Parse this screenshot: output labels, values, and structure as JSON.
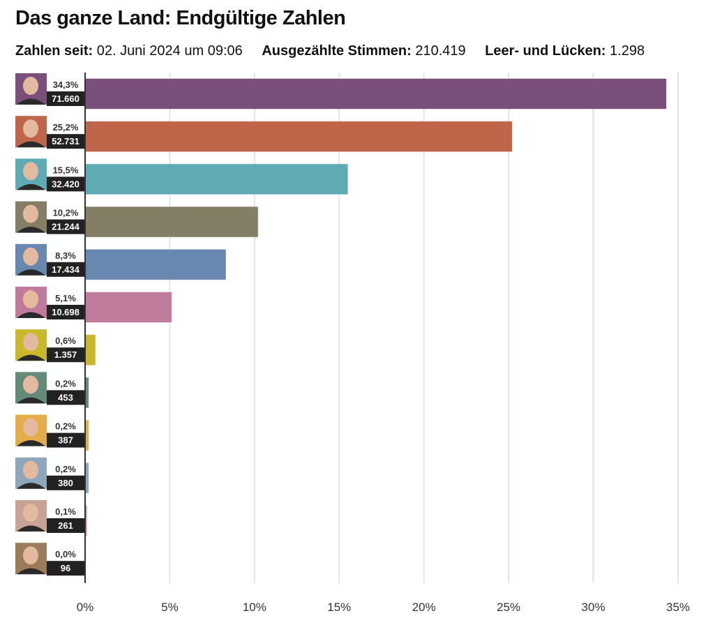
{
  "header": {
    "title": "Das ganze Land: Endgültige Zahlen",
    "meta": [
      {
        "label": "Zahlen seit:",
        "value": "02. Juni 2024 um 09:06"
      },
      {
        "label": "Ausgezählte Stimmen:",
        "value": "210.419"
      },
      {
        "label": "Leer- und Lücken:",
        "value": "1.298"
      }
    ]
  },
  "chart_data": {
    "type": "bar",
    "orientation": "horizontal",
    "title": "Das ganze Land: Endgültige Zahlen",
    "xlabel": "",
    "ylabel": "",
    "xlim": [
      0,
      35
    ],
    "x_ticks": [
      0,
      5,
      10,
      15,
      20,
      25,
      30,
      35
    ],
    "x_tick_labels": [
      "0%",
      "5%",
      "10%",
      "15%",
      "20%",
      "25%",
      "30%",
      "35%"
    ],
    "grid": true,
    "legend": "none",
    "candidates": [
      {
        "percent": 34.3,
        "percent_label": "34,3%",
        "votes_label": "71.660",
        "color": "#7a4f7a",
        "avatar": "portrait-woman-short-blonde-hair"
      },
      {
        "percent": 25.2,
        "percent_label": "25,2%",
        "votes_label": "52.731",
        "color": "#be654a",
        "avatar": "portrait-woman-dark-long-hair"
      },
      {
        "percent": 15.5,
        "percent_label": "15,5%",
        "votes_label": "32.420",
        "color": "#5eabb5",
        "avatar": "portrait-woman-blonde-long-hair"
      },
      {
        "percent": 10.2,
        "percent_label": "10,2%",
        "votes_label": "21.244",
        "color": "#837e65",
        "avatar": "portrait-man-glasses"
      },
      {
        "percent": 8.3,
        "percent_label": "8,3%",
        "votes_label": "17.434",
        "color": "#6888b0",
        "avatar": "portrait-man-bald-beard-glasses"
      },
      {
        "percent": 5.1,
        "percent_label": "5,1%",
        "votes_label": "10.698",
        "color": "#c07a9c",
        "avatar": "portrait-man-bald"
      },
      {
        "percent": 0.6,
        "percent_label": "0,6%",
        "votes_label": "1.357",
        "color": "#c8b82a",
        "avatar": "portrait-woman-dark-curly-hair"
      },
      {
        "percent": 0.2,
        "percent_label": "0,2%",
        "votes_label": "453",
        "color": "#658a78",
        "avatar": "portrait-man-gray-hair-glasses"
      },
      {
        "percent": 0.2,
        "percent_label": "0,2%",
        "votes_label": "387",
        "color": "#e5ac4a",
        "avatar": "portrait-woman-platinum-hair"
      },
      {
        "percent": 0.2,
        "percent_label": "0,2%",
        "votes_label": "380",
        "color": "#8ea7ba",
        "avatar": "portrait-man-beard"
      },
      {
        "percent": 0.1,
        "percent_label": "0,1%",
        "votes_label": "261",
        "color": "#c9a296",
        "avatar": "portrait-woman-blonde-wavy-hair"
      },
      {
        "percent": 0.0,
        "percent_label": "0,0%",
        "votes_label": "96",
        "color": "#9a7c5a",
        "avatar": "portrait-man-suit"
      }
    ]
  }
}
